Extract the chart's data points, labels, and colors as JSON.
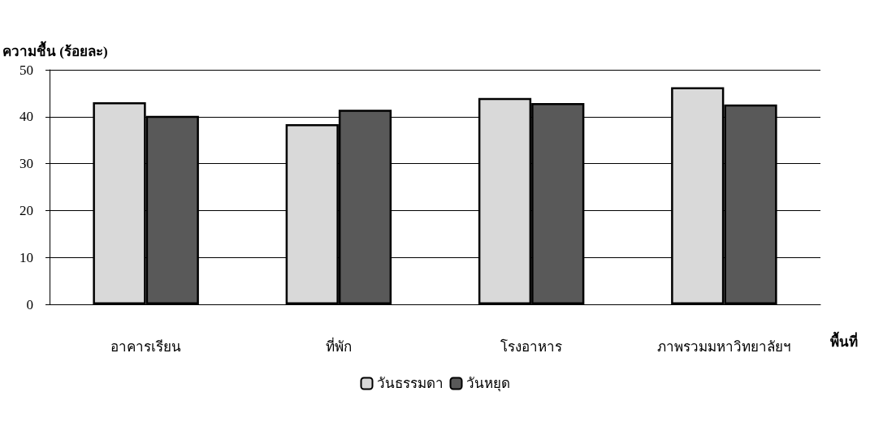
{
  "chart_data": {
    "type": "bar",
    "ylabel": "ความชื้น (ร้อยละ)",
    "xlabel": "พื้นที่",
    "categories": [
      "อาคารเรียน",
      "ที่พัก",
      "โรงอาหาร",
      "ภาพรวมมหาวิทยาลัยฯ"
    ],
    "series": [
      {
        "name": "วันธรรมดา",
        "color": "#d9d9d9",
        "values": [
          43.1,
          38.4,
          44.0,
          46.3
        ]
      },
      {
        "name": "วันหยุด",
        "color": "#595959",
        "values": [
          40.2,
          41.5,
          42.9,
          42.6
        ]
      }
    ],
    "ylim": [
      0,
      50
    ],
    "yticks": [
      0,
      10,
      20,
      30,
      40,
      50
    ],
    "grid": "y",
    "legend": "bottom"
  }
}
